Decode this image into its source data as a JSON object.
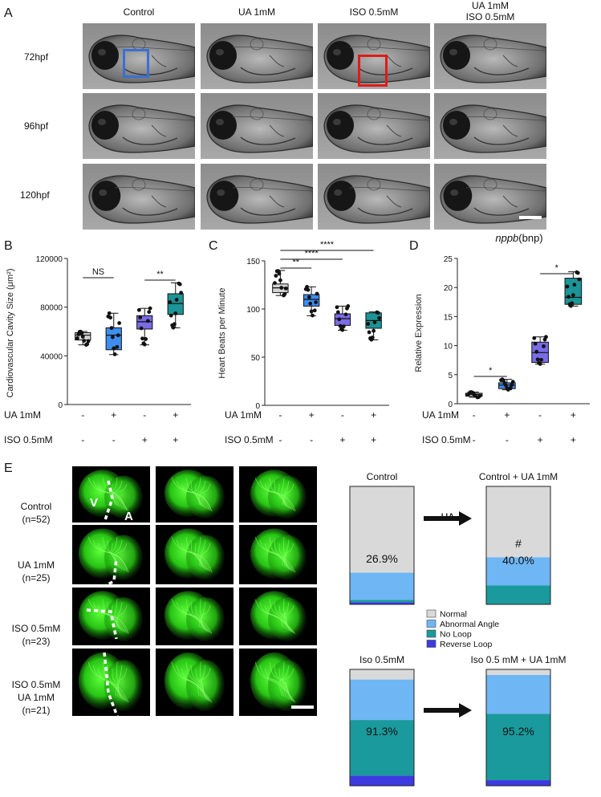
{
  "panelA": {
    "label": "A",
    "columns": [
      "Control",
      "UA 1mM",
      "ISO 0.5mM",
      "UA 1mM\nISO 0.5mM"
    ],
    "col4_line1": "UA 1mM",
    "col4_line2": "ISO 0.5mM",
    "rows": [
      "72hpf",
      "96hpf",
      "120hpf"
    ]
  },
  "panelB": {
    "label": "B",
    "ylabel_main": "Cardiovascular Cavity Size",
    "ylabel_unit": "(μm²)",
    "yticks": [
      "0",
      "40000",
      "80000",
      "120000"
    ],
    "sig": [
      "NS",
      "**"
    ],
    "ua_label": "UA 1mM",
    "iso_label": "ISO 0.5mM",
    "ua_signs": [
      "-",
      "+",
      "-",
      "+"
    ],
    "iso_signs": [
      "-",
      "-",
      "+",
      "+"
    ]
  },
  "panelC": {
    "label": "C",
    "ylabel": "Heart Beats per Minute",
    "yticks": [
      "0",
      "50",
      "100",
      "150"
    ],
    "sig": [
      "**",
      "****",
      "****"
    ],
    "ua_label": "UA 1mM",
    "iso_label": "ISO 0.5mM",
    "ua_signs": [
      "-",
      "+",
      "-",
      "+"
    ],
    "iso_signs": [
      "-",
      "-",
      "+",
      "+"
    ]
  },
  "panelD": {
    "label": "D",
    "title_gene": "nppb",
    "title_rest": "(bnp)",
    "ylabel": "Relative Expression",
    "yticks": [
      "0",
      "5",
      "10",
      "15",
      "20",
      "25"
    ],
    "sig": [
      "*",
      "*"
    ],
    "ua_label": "UA 1mM",
    "iso_label": "ISO 0.5mM",
    "ua_signs": [
      "-",
      "+",
      "-",
      "+"
    ],
    "iso_signs": [
      "-",
      "-",
      "+",
      "+"
    ]
  },
  "panelE": {
    "label": "E",
    "rows": [
      {
        "l1": "Control",
        "l2": "(n=52)"
      },
      {
        "l1": "UA 1mM",
        "l2": "(n=25)"
      },
      {
        "l1": "ISO 0.5mM",
        "l2": "(n=23)"
      },
      {
        "l1": "ISO 0.5mM",
        "l2": "UA 1mM",
        "l3": "(n=21)"
      }
    ],
    "heart_v": "V",
    "heart_a": "A",
    "arrow_label": "UA",
    "bars": [
      {
        "title": "Control",
        "pct": "26.9%"
      },
      {
        "title": "Control + UA 1mM",
        "pct": "40.0%",
        "mark": "#"
      },
      {
        "title": "Iso 0.5mM",
        "pct": "91.3%"
      },
      {
        "title": "Iso 0.5 mM + UA 1mM",
        "pct": "95.2%"
      }
    ],
    "legend": [
      "Normal",
      "Abnormal Angle",
      "No Loop",
      "Reverse Loop"
    ],
    "colors": {
      "normal": "#d9d9d9",
      "abnormal": "#6fb6f4",
      "noloop": "#1a9a9c",
      "reverse": "#3b3be0"
    }
  },
  "chart_data": [
    {
      "type": "box",
      "panel": "B",
      "ylabel": "Cardiovascular Cavity Size (μm²)",
      "ylim": [
        0,
        120000
      ],
      "groups": [
        {
          "ua": "-",
          "iso": "-",
          "color": "#d3d3d3",
          "min": 49000,
          "q1": 53000,
          "median": 57000,
          "q3": 59000,
          "max": 60000
        },
        {
          "ua": "+",
          "iso": "-",
          "color": "#3e8ef0",
          "min": 41000,
          "q1": 45000,
          "median": 57000,
          "q3": 63000,
          "max": 75000
        },
        {
          "ua": "-",
          "iso": "+",
          "color": "#7a6be6",
          "min": 49000,
          "q1": 62000,
          "median": 68000,
          "q3": 73000,
          "max": 79000
        },
        {
          "ua": "+",
          "iso": "+",
          "color": "#1b9597",
          "min": 63000,
          "q1": 74000,
          "median": 83000,
          "q3": 91000,
          "max": 100000
        }
      ]
    },
    {
      "type": "box",
      "panel": "C",
      "ylabel": "Heart Beats per Minute",
      "ylim": [
        0,
        150
      ],
      "groups": [
        {
          "ua": "-",
          "iso": "-",
          "color": "#d3d3d3",
          "min": 114,
          "q1": 117,
          "median": 122,
          "q3": 126,
          "max": 140
        },
        {
          "ua": "+",
          "iso": "-",
          "color": "#3e8ef0",
          "min": 93,
          "q1": 103,
          "median": 110,
          "q3": 115,
          "max": 123
        },
        {
          "ua": "-",
          "iso": "+",
          "color": "#7a6be6",
          "min": 78,
          "q1": 83,
          "median": 90,
          "q3": 95,
          "max": 103
        },
        {
          "ua": "+",
          "iso": "+",
          "color": "#1b9597",
          "min": 68,
          "q1": 80,
          "median": 88,
          "q3": 96,
          "max": 97
        }
      ]
    },
    {
      "type": "box",
      "panel": "D",
      "title": "nppb(bnp)",
      "ylabel": "Relative Expression",
      "ylim": [
        0,
        25
      ],
      "groups": [
        {
          "ua": "-",
          "iso": "-",
          "color": "#d3d3d3",
          "min": 1.1,
          "q1": 1.3,
          "median": 1.6,
          "q3": 1.8,
          "max": 2.0
        },
        {
          "ua": "+",
          "iso": "-",
          "color": "#3e8ef0",
          "min": 2.4,
          "q1": 2.6,
          "median": 3.2,
          "q3": 3.6,
          "max": 4.2
        },
        {
          "ua": "-",
          "iso": "+",
          "color": "#7a6be6",
          "min": 6.8,
          "q1": 7.1,
          "median": 8.8,
          "q3": 10.6,
          "max": 11.5
        },
        {
          "ua": "+",
          "iso": "+",
          "color": "#1b9597",
          "min": 16.8,
          "q1": 17.1,
          "median": 18.3,
          "q3": 21.6,
          "max": 22.7
        }
      ]
    },
    {
      "type": "stacked-bar",
      "panel": "E",
      "categories": [
        "Control",
        "Control + UA 1mM",
        "Iso 0.5mM",
        "Iso 0.5 mM + UA 1mM"
      ],
      "series": [
        {
          "name": "Normal",
          "values": [
            73.1,
            60.0,
            8.7,
            4.8
          ]
        },
        {
          "name": "Abnormal Angle",
          "values": [
            23.1,
            24.0,
            34.8,
            33.3
          ]
        },
        {
          "name": "No Loop",
          "values": [
            1.9,
            16.0,
            47.8,
            57.1
          ]
        },
        {
          "name": "Reverse Loop",
          "values": [
            1.9,
            0.0,
            8.7,
            4.8
          ]
        }
      ]
    }
  ]
}
